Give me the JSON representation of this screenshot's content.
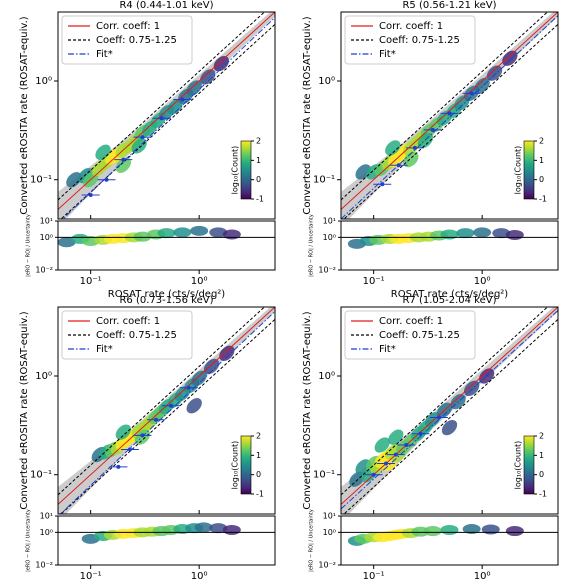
{
  "chart_data": [
    {
      "type": "hist2d",
      "title": "R4 (0.44-1.01 keV)",
      "xlabel": "ROSAT rate (cts/s/deg²)",
      "ylabel": "Converted eROSITA rate (ROSAT-equiv.)",
      "residual_ylabel": "|eRO − RO| / Uncertainty",
      "xscale": "log",
      "yscale": "log",
      "xlim": [
        0.05,
        5
      ],
      "ylim": [
        0.04,
        5
      ],
      "xticks": [
        {
          "value": 0.1,
          "label": "10⁻¹"
        },
        {
          "value": 1,
          "label": "10⁰"
        }
      ],
      "yticks": [
        {
          "value": 0.1,
          "label": "10⁻¹"
        },
        {
          "value": 1,
          "label": "10⁰"
        }
      ],
      "res_ylim": [
        0.01,
        10
      ],
      "res_yticks": [
        {
          "value": 0.01,
          "label": "10⁻²"
        },
        {
          "value": 1,
          "label": "10⁰"
        },
        {
          "value": 10,
          "label": "10¹"
        }
      ],
      "res_line": 1,
      "colorbar": {
        "label": "log₁₀(Count)",
        "lim": [
          -1,
          2
        ],
        "ticks": [
          -1,
          0,
          1,
          2
        ]
      },
      "band": {
        "x": [
          0.05,
          0.3,
          5
        ],
        "low": [
          0.033,
          0.25,
          4.5
        ],
        "high": [
          0.075,
          0.36,
          5.5
        ],
        "color": "#aaaaaa"
      },
      "lines": [
        {
          "name": "Corr. coeff: 1",
          "color": "#e41a1c",
          "dash": "solid",
          "x": [
            0.05,
            5
          ],
          "y": [
            0.05,
            5
          ]
        },
        {
          "name": "Coeff: 0.75-1.25",
          "color": "#000000",
          "dash": "dashed",
          "x": [
            0.05,
            5
          ],
          "lower": [
            0.0375,
            3.75
          ],
          "upper": [
            0.0625,
            6.25
          ]
        },
        {
          "name": "Fit*",
          "color": "#1f3fd0",
          "dash": "dashdot",
          "x": [
            0.05,
            5
          ],
          "y": [
            0.036,
            4.4
          ]
        }
      ],
      "cloud": {
        "x": [
          0.07,
          0.09,
          0.1,
          0.12,
          0.14,
          0.16,
          0.18,
          0.2,
          0.23,
          0.26,
          0.3,
          0.35,
          0.42,
          0.5,
          0.6,
          0.75,
          0.9,
          1.2,
          1.6,
          0.13,
          0.2,
          0.28
        ],
        "y": [
          0.1,
          0.11,
          0.1,
          0.13,
          0.15,
          0.17,
          0.18,
          0.2,
          0.22,
          0.25,
          0.3,
          0.33,
          0.4,
          0.48,
          0.55,
          0.7,
          0.85,
          1.1,
          1.5,
          0.19,
          0.14,
          0.22
        ],
        "c": [
          0.3,
          0.6,
          1.2,
          1.5,
          1.8,
          2,
          1.9,
          1.8,
          1.6,
          1.5,
          1.2,
          1,
          0.8,
          0.6,
          0.4,
          0.2,
          0,
          -0.3,
          -0.6,
          1,
          1.3,
          0.9
        ]
      },
      "fit_points": {
        "x": [
          0.1,
          0.14,
          0.2,
          0.3,
          0.45,
          0.7
        ],
        "y": [
          0.07,
          0.1,
          0.16,
          0.27,
          0.42,
          0.65
        ]
      },
      "residual": {
        "x": [
          0.06,
          0.08,
          0.1,
          0.13,
          0.16,
          0.2,
          0.25,
          0.3,
          0.4,
          0.5,
          0.7,
          1,
          1.5,
          2
        ],
        "y": [
          0.5,
          0.8,
          0.6,
          0.7,
          0.8,
          0.9,
          1,
          1.1,
          1.5,
          1.8,
          2,
          2.5,
          2,
          1.5
        ],
        "c": [
          0.2,
          0.8,
          1.3,
          1.7,
          2,
          1.9,
          1.7,
          1.4,
          1.1,
          0.8,
          0.5,
          0.2,
          -0.3,
          -0.6
        ]
      }
    },
    {
      "type": "hist2d",
      "title": "R5 (0.56-1.21 keV)",
      "xlabel": "ROSAT rate (cts/s/deg²)",
      "ylabel": "Converted eROSITA rate (ROSAT-equiv.)",
      "residual_ylabel": "|eRO − RO| / Uncertainty",
      "xscale": "log",
      "yscale": "log",
      "xlim": [
        0.05,
        5
      ],
      "ylim": [
        0.04,
        5
      ],
      "xticks": [
        {
          "value": 0.1,
          "label": "10⁻¹"
        },
        {
          "value": 1,
          "label": "10⁰"
        }
      ],
      "yticks": [
        {
          "value": 0.1,
          "label": "10⁻¹"
        },
        {
          "value": 1,
          "label": "10⁰"
        }
      ],
      "res_ylim": [
        0.01,
        10
      ],
      "res_yticks": [
        {
          "value": 0.01,
          "label": "10⁻²"
        },
        {
          "value": 1,
          "label": "10⁰"
        },
        {
          "value": 10,
          "label": "10¹"
        }
      ],
      "res_line": 1,
      "colorbar": {
        "label": "log₁₀(Count)",
        "lim": [
          -1,
          2
        ],
        "ticks": [
          -1,
          0,
          1,
          2
        ]
      },
      "band": {
        "x": [
          0.05,
          0.3,
          5
        ],
        "low": [
          0.033,
          0.25,
          4.5
        ],
        "high": [
          0.075,
          0.36,
          5.5
        ],
        "color": "#aaaaaa"
      },
      "lines": [
        {
          "name": "Corr. coeff: 1",
          "color": "#e41a1c",
          "dash": "solid",
          "x": [
            0.05,
            5
          ],
          "y": [
            0.05,
            5
          ]
        },
        {
          "name": "Coeff: 0.75-1.25",
          "color": "#000000",
          "dash": "dashed",
          "x": [
            0.05,
            5
          ],
          "lower": [
            0.0375,
            3.75
          ],
          "upper": [
            0.0625,
            6.25
          ]
        },
        {
          "name": "Fit*",
          "color": "#1f3fd0",
          "dash": "dashdot",
          "x": [
            0.05,
            5
          ],
          "y": [
            0.04,
            4.6
          ]
        }
      ],
      "cloud": {
        "x": [
          0.08,
          0.1,
          0.12,
          0.14,
          0.16,
          0.18,
          0.2,
          0.22,
          0.25,
          0.28,
          0.32,
          0.38,
          0.45,
          0.55,
          0.65,
          0.8,
          1,
          1.3,
          1.8,
          0.15,
          0.22,
          0.3
        ],
        "y": [
          0.12,
          0.12,
          0.13,
          0.15,
          0.16,
          0.18,
          0.2,
          0.21,
          0.24,
          0.27,
          0.31,
          0.36,
          0.42,
          0.5,
          0.6,
          0.75,
          0.9,
          1.2,
          1.7,
          0.21,
          0.16,
          0.25
        ],
        "c": [
          0.2,
          0.7,
          1.1,
          1.6,
          1.9,
          2,
          1.9,
          1.8,
          1.7,
          1.5,
          1.3,
          1.1,
          0.9,
          0.7,
          0.5,
          0.3,
          0.1,
          -0.2,
          -0.5,
          1,
          1.2,
          0.9
        ]
      },
      "fit_points": {
        "x": [
          0.12,
          0.17,
          0.24,
          0.35,
          0.5,
          0.8
        ],
        "y": [
          0.09,
          0.14,
          0.21,
          0.32,
          0.47,
          0.75
        ]
      },
      "residual": {
        "x": [
          0.07,
          0.09,
          0.11,
          0.14,
          0.17,
          0.21,
          0.26,
          0.32,
          0.4,
          0.5,
          0.7,
          1,
          1.5,
          2
        ],
        "y": [
          0.4,
          0.6,
          0.7,
          0.8,
          0.8,
          0.9,
          1,
          1.1,
          1.3,
          1.5,
          1.8,
          2,
          1.8,
          1.4
        ],
        "c": [
          0.1,
          0.6,
          1.1,
          1.6,
          1.9,
          2,
          1.8,
          1.5,
          1.2,
          0.9,
          0.6,
          0.3,
          -0.2,
          -0.5
        ]
      }
    },
    {
      "type": "hist2d",
      "title": "R6 (0.73-1.56 keV)",
      "xlabel": "ROSAT rate (cts/s/deg²)",
      "ylabel": "Converted eROSITA rate (ROSAT-equiv.)",
      "residual_ylabel": "|eRO − RO| / Uncertainty",
      "xscale": "log",
      "yscale": "log",
      "xlim": [
        0.05,
        5
      ],
      "ylim": [
        0.04,
        5
      ],
      "xticks": [
        {
          "value": 0.1,
          "label": "10⁻¹"
        },
        {
          "value": 1,
          "label": "10⁰"
        }
      ],
      "yticks": [
        {
          "value": 0.1,
          "label": "10⁻¹"
        },
        {
          "value": 1,
          "label": "10⁰"
        }
      ],
      "res_ylim": [
        0.01,
        10
      ],
      "res_yticks": [
        {
          "value": 0.01,
          "label": "10⁻²"
        },
        {
          "value": 1,
          "label": "10⁰"
        },
        {
          "value": 10,
          "label": "10¹"
        }
      ],
      "res_line": 1,
      "colorbar": {
        "label": "log₁₀(Count)",
        "lim": [
          -1,
          2
        ],
        "ticks": [
          -1,
          0,
          1,
          2
        ]
      },
      "band": {
        "x": [
          0.05,
          0.3,
          5
        ],
        "low": [
          0.033,
          0.25,
          4.5
        ],
        "high": [
          0.075,
          0.36,
          5.5
        ],
        "color": "#aaaaaa"
      },
      "lines": [
        {
          "name": "Corr. coeff: 1",
          "color": "#e41a1c",
          "dash": "solid",
          "x": [
            0.05,
            5
          ],
          "y": [
            0.05,
            5
          ]
        },
        {
          "name": "Coeff: 0.75-1.25",
          "color": "#000000",
          "dash": "dashed",
          "x": [
            0.05,
            5
          ],
          "lower": [
            0.0375,
            3.75
          ],
          "upper": [
            0.0625,
            6.25
          ]
        },
        {
          "name": "Fit*",
          "color": "#1f3fd0",
          "dash": "dashdot",
          "x": [
            0.05,
            5
          ],
          "y": [
            0.038,
            4.5
          ]
        }
      ],
      "cloud": {
        "x": [
          0.12,
          0.14,
          0.16,
          0.18,
          0.2,
          0.22,
          0.25,
          0.28,
          0.32,
          0.36,
          0.4,
          0.45,
          0.5,
          0.6,
          0.7,
          0.85,
          1,
          1.3,
          1.8,
          0.2,
          0.3,
          0.9
        ],
        "y": [
          0.16,
          0.17,
          0.18,
          0.19,
          0.21,
          0.23,
          0.25,
          0.28,
          0.31,
          0.35,
          0.39,
          0.44,
          0.49,
          0.57,
          0.66,
          0.8,
          0.95,
          1.25,
          1.7,
          0.27,
          0.24,
          0.5
        ],
        "c": [
          0.3,
          0.8,
          1.3,
          1.7,
          2,
          2,
          1.9,
          1.8,
          1.6,
          1.5,
          1.3,
          1.1,
          1,
          0.8,
          0.6,
          0.4,
          0.2,
          -0.2,
          -0.5,
          1,
          1.1,
          -0.4
        ]
      },
      "fit_points": {
        "x": [
          0.18,
          0.23,
          0.3,
          0.4,
          0.55,
          0.8
        ],
        "y": [
          0.12,
          0.18,
          0.25,
          0.36,
          0.5,
          0.76
        ]
      },
      "residual": {
        "x": [
          0.1,
          0.13,
          0.16,
          0.2,
          0.25,
          0.3,
          0.37,
          0.45,
          0.55,
          0.7,
          0.9,
          1.1,
          1.5,
          2
        ],
        "y": [
          0.4,
          0.6,
          0.7,
          0.8,
          0.9,
          1,
          1.1,
          1.2,
          1.4,
          1.6,
          1.8,
          2,
          1.8,
          1.4
        ],
        "c": [
          0.3,
          0.9,
          1.5,
          1.9,
          2,
          1.8,
          1.6,
          1.3,
          1.1,
          0.8,
          0.5,
          0.2,
          -0.2,
          -0.6
        ]
      }
    },
    {
      "type": "hist2d",
      "title": "R7 (1.05-2.04 keV)",
      "xlabel": "ROSAT rate (cts/s/deg²)",
      "ylabel": "Converted eROSITA rate (ROSAT-equiv.)",
      "residual_ylabel": "|eRO − RO| / Uncertainty",
      "xscale": "log",
      "yscale": "log",
      "xlim": [
        0.05,
        5
      ],
      "ylim": [
        0.04,
        5
      ],
      "xticks": [
        {
          "value": 0.1,
          "label": "10⁻¹"
        },
        {
          "value": 1,
          "label": "10⁰"
        }
      ],
      "yticks": [
        {
          "value": 0.1,
          "label": "10⁻¹"
        },
        {
          "value": 1,
          "label": "10⁰"
        }
      ],
      "res_ylim": [
        0.01,
        10
      ],
      "res_yticks": [
        {
          "value": 0.01,
          "label": "10⁻²"
        },
        {
          "value": 1,
          "label": "10⁰"
        },
        {
          "value": 10,
          "label": "10¹"
        }
      ],
      "res_line": 1,
      "colorbar": {
        "label": "log₁₀(Count)",
        "lim": [
          -1,
          2
        ],
        "ticks": [
          -1,
          0,
          1,
          2
        ]
      },
      "band": {
        "x": [
          0.05,
          0.3,
          5
        ],
        "low": [
          0.033,
          0.25,
          4.5
        ],
        "high": [
          0.075,
          0.36,
          5.5
        ],
        "color": "#aaaaaa"
      },
      "lines": [
        {
          "name": "Corr. coeff: 1",
          "color": "#e41a1c",
          "dash": "solid",
          "x": [
            0.05,
            5
          ],
          "y": [
            0.05,
            5
          ]
        },
        {
          "name": "Coeff: 0.75-1.25",
          "color": "#000000",
          "dash": "dashed",
          "x": [
            0.05,
            5
          ],
          "lower": [
            0.0375,
            3.75
          ],
          "upper": [
            0.0625,
            6.25
          ]
        },
        {
          "name": "Fit*",
          "color": "#1f3fd0",
          "dash": "dashdot",
          "x": [
            0.05,
            5
          ],
          "y": [
            0.045,
            4.6
          ]
        }
      ],
      "cloud": {
        "x": [
          0.07,
          0.08,
          0.09,
          0.1,
          0.11,
          0.12,
          0.13,
          0.14,
          0.15,
          0.17,
          0.19,
          0.22,
          0.26,
          0.3,
          0.35,
          0.45,
          0.6,
          0.8,
          1.1,
          0.12,
          0.16,
          0.5
        ],
        "y": [
          0.09,
          0.12,
          0.1,
          0.13,
          0.12,
          0.14,
          0.15,
          0.13,
          0.17,
          0.16,
          0.19,
          0.22,
          0.26,
          0.3,
          0.36,
          0.45,
          0.55,
          0.75,
          1,
          0.2,
          0.24,
          0.3
        ],
        "c": [
          0.2,
          0.6,
          1,
          1.4,
          1.8,
          2,
          2,
          1.9,
          1.8,
          1.6,
          1.4,
          1.2,
          1,
          0.8,
          0.6,
          0.3,
          0.1,
          -0.2,
          -0.5,
          0.9,
          0.8,
          -0.3
        ]
      },
      "fit_points": {
        "x": [
          0.1,
          0.13,
          0.16,
          0.2,
          0.27,
          0.4
        ],
        "y": [
          0.1,
          0.13,
          0.16,
          0.2,
          0.26,
          0.38
        ]
      },
      "residual": {
        "x": [
          0.07,
          0.08,
          0.1,
          0.12,
          0.14,
          0.16,
          0.18,
          0.22,
          0.27,
          0.35,
          0.5,
          0.8,
          1.2,
          2
        ],
        "y": [
          0.3,
          0.4,
          0.5,
          0.5,
          0.6,
          0.7,
          0.8,
          0.9,
          1.1,
          1.2,
          1.4,
          1.6,
          1.5,
          1.2
        ],
        "c": [
          0.5,
          1.2,
          1.8,
          2,
          2,
          2,
          1.9,
          1.7,
          1.4,
          1.1,
          0.7,
          0.3,
          -0.2,
          -0.5
        ]
      }
    }
  ]
}
